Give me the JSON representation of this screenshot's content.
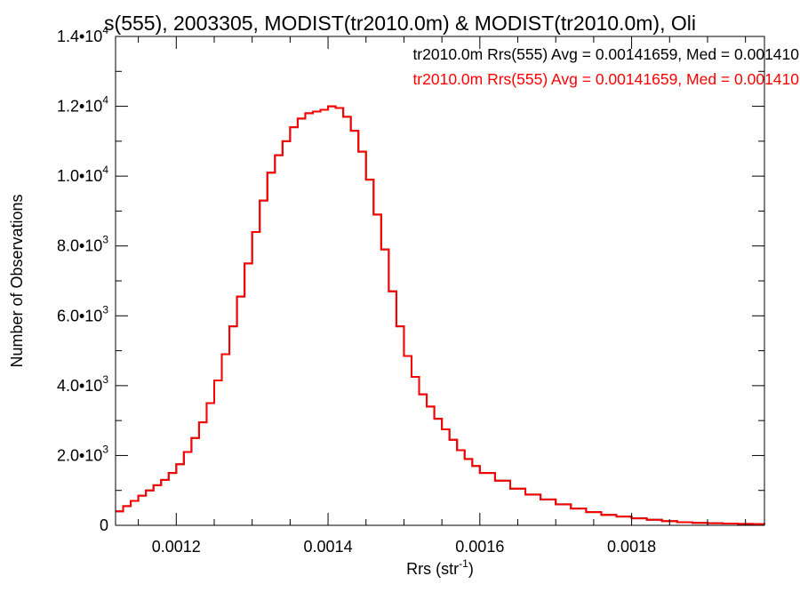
{
  "chart_data": {
    "type": "histogram",
    "title": "s(555), 2003305, MODIST(tr2010.0m) & MODIST(tr2010.0m), Oli",
    "xlabel": "Rrs (str",
    "xlabel_sup": "-1",
    "xlabel_close": ")",
    "ylabel": "Number of Observations",
    "xlim": [
      0.00112,
      0.001975
    ],
    "ylim": [
      0,
      14000
    ],
    "grid": false,
    "legend_position": "top-right",
    "x_ticks": [
      {
        "value": 0.0012,
        "label": "0.0012"
      },
      {
        "value": 0.0014,
        "label": "0.0014"
      },
      {
        "value": 0.0016,
        "label": "0.0016"
      },
      {
        "value": 0.0018,
        "label": "0.0018"
      }
    ],
    "y_ticks": [
      {
        "value": 0,
        "mant": "0",
        "exp": ""
      },
      {
        "value": 2000,
        "mant": "2.0•10",
        "exp": "3"
      },
      {
        "value": 4000,
        "mant": "4.0•10",
        "exp": "3"
      },
      {
        "value": 6000,
        "mant": "6.0•10",
        "exp": "3"
      },
      {
        "value": 8000,
        "mant": "8.0•10",
        "exp": "3"
      },
      {
        "value": 10000,
        "mant": "1.0•10",
        "exp": "4"
      },
      {
        "value": 12000,
        "mant": "1.2•10",
        "exp": "4"
      },
      {
        "value": 14000,
        "mant": "1.4•10",
        "exp": "4"
      }
    ],
    "x_minor_ticks": [
      0.00115,
      0.00125,
      0.0013,
      0.00135,
      0.00145,
      0.0015,
      0.00155,
      0.00165,
      0.0017,
      0.00175,
      0.00185,
      0.0019,
      0.00195
    ],
    "y_minor_ticks": [
      1000,
      3000,
      5000,
      7000,
      9000,
      11000,
      13000
    ],
    "series": [
      {
        "name": "tr2010.0m Rrs(555) Avg = 0.00141659, Med = 0.001410",
        "color": "#000000",
        "x": [
          0.00112,
          0.00113,
          0.00114,
          0.00115,
          0.00116,
          0.00117,
          0.00118,
          0.00119,
          0.0012,
          0.00121,
          0.00122,
          0.00123,
          0.00124,
          0.00125,
          0.00126,
          0.00127,
          0.00128,
          0.00129,
          0.0013,
          0.00131,
          0.00132,
          0.00133,
          0.00134,
          0.00135,
          0.00136,
          0.00137,
          0.00138,
          0.00139,
          0.0014,
          0.00141,
          0.00142,
          0.00143,
          0.00144,
          0.00145,
          0.00146,
          0.00147,
          0.00148,
          0.00149,
          0.0015,
          0.00151,
          0.00152,
          0.00153,
          0.00154,
          0.00155,
          0.00156,
          0.00157,
          0.00158,
          0.00159,
          0.0016,
          0.00162,
          0.00164,
          0.00166,
          0.00168,
          0.0017,
          0.00172,
          0.00174,
          0.00176,
          0.00178,
          0.0018,
          0.00182,
          0.00184,
          0.00186,
          0.00188,
          0.0019,
          0.00192,
          0.00194,
          0.00196,
          0.001975
        ],
        "values": [
          400,
          550,
          700,
          850,
          1000,
          1150,
          1300,
          1500,
          1750,
          2100,
          2500,
          2950,
          3500,
          4150,
          4900,
          5700,
          6550,
          7500,
          8400,
          9300,
          10100,
          10600,
          11000,
          11400,
          11650,
          11800,
          11850,
          11900,
          12000,
          11950,
          11700,
          11300,
          10700,
          9900,
          8900,
          7900,
          6700,
          5700,
          4850,
          4250,
          3750,
          3400,
          3050,
          2750,
          2450,
          2150,
          1900,
          1700,
          1500,
          1280,
          1050,
          880,
          740,
          600,
          480,
          380,
          300,
          250,
          200,
          160,
          120,
          90,
          70,
          60,
          50,
          40,
          35,
          30
        ]
      },
      {
        "name": "tr2010.0m Rrs(555) Avg = 0.00141659, Med = 0.001410",
        "color": "#ff0000",
        "x": [
          0.00112,
          0.00113,
          0.00114,
          0.00115,
          0.00116,
          0.00117,
          0.00118,
          0.00119,
          0.0012,
          0.00121,
          0.00122,
          0.00123,
          0.00124,
          0.00125,
          0.00126,
          0.00127,
          0.00128,
          0.00129,
          0.0013,
          0.00131,
          0.00132,
          0.00133,
          0.00134,
          0.00135,
          0.00136,
          0.00137,
          0.00138,
          0.00139,
          0.0014,
          0.00141,
          0.00142,
          0.00143,
          0.00144,
          0.00145,
          0.00146,
          0.00147,
          0.00148,
          0.00149,
          0.0015,
          0.00151,
          0.00152,
          0.00153,
          0.00154,
          0.00155,
          0.00156,
          0.00157,
          0.00158,
          0.00159,
          0.0016,
          0.00162,
          0.00164,
          0.00166,
          0.00168,
          0.0017,
          0.00172,
          0.00174,
          0.00176,
          0.00178,
          0.0018,
          0.00182,
          0.00184,
          0.00186,
          0.00188,
          0.0019,
          0.00192,
          0.00194,
          0.00196,
          0.001975
        ],
        "values": [
          400,
          550,
          700,
          850,
          1000,
          1150,
          1300,
          1500,
          1750,
          2100,
          2500,
          2950,
          3500,
          4150,
          4900,
          5700,
          6550,
          7500,
          8400,
          9300,
          10100,
          10600,
          11000,
          11400,
          11650,
          11800,
          11850,
          11900,
          12000,
          11950,
          11700,
          11300,
          10700,
          9900,
          8900,
          7900,
          6700,
          5700,
          4850,
          4250,
          3750,
          3400,
          3050,
          2750,
          2450,
          2150,
          1900,
          1700,
          1500,
          1280,
          1050,
          880,
          740,
          600,
          480,
          380,
          300,
          250,
          200,
          160,
          120,
          90,
          70,
          60,
          50,
          40,
          35,
          30
        ]
      }
    ]
  }
}
